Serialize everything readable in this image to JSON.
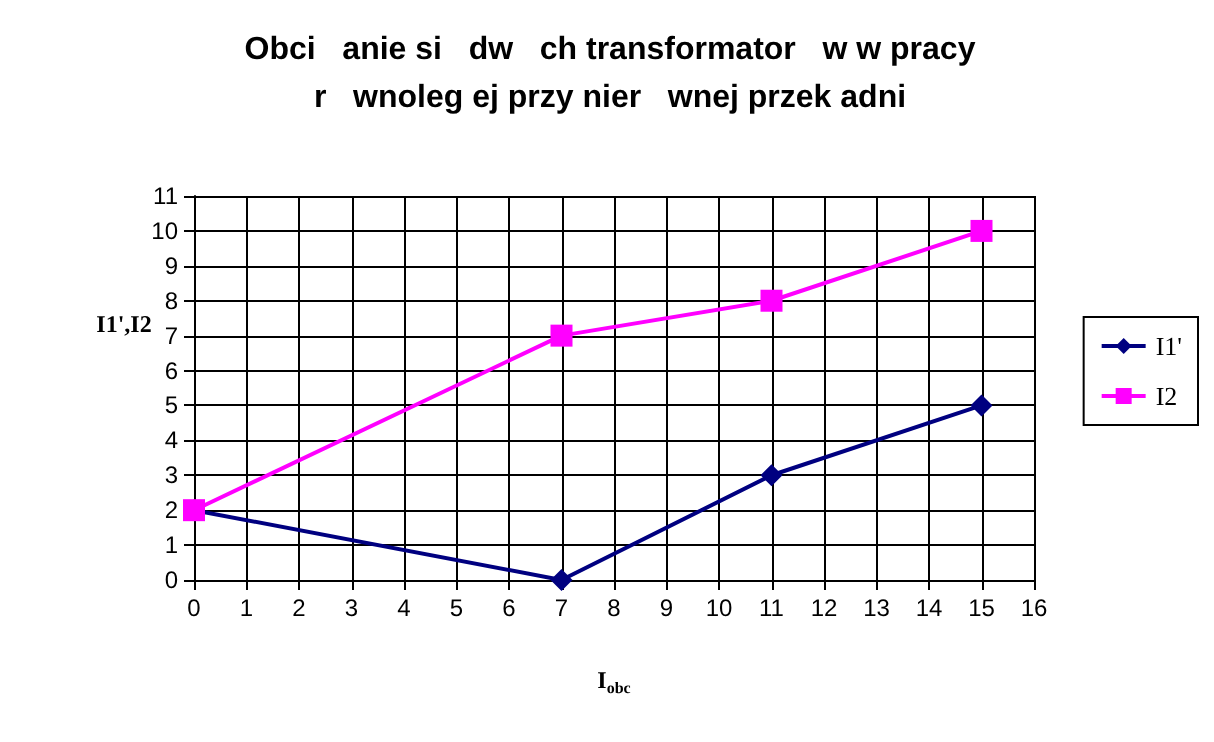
{
  "chart_data": {
    "type": "line",
    "title": "Obci   anie si   dw   ch transformator   w w pracy\nr   wnoleg ej przy nier   wnej przek adni",
    "xlabel": "I$_{obc}$",
    "ylabel": "I1',I2",
    "xlim": [
      0,
      16
    ],
    "xticks": [
      0,
      1,
      2,
      3,
      4,
      5,
      6,
      7,
      8,
      9,
      10,
      11,
      12,
      13,
      14,
      15,
      16
    ],
    "ylim": [
      0,
      11
    ],
    "yticks": [
      0,
      1,
      2,
      3,
      4,
      5,
      6,
      7,
      8,
      9,
      10,
      11
    ],
    "grid": true,
    "legend": "right",
    "series": [
      {
        "name": "I1'",
        "color": "#000080",
        "marker": "diamond",
        "x": [
          0,
          7,
          11,
          15
        ],
        "values": [
          2,
          0,
          3,
          5
        ]
      },
      {
        "name": "I2",
        "color": "#ff00ff",
        "marker": "square",
        "x": [
          0,
          7,
          11,
          15
        ],
        "values": [
          2,
          7,
          8,
          10
        ]
      }
    ]
  }
}
